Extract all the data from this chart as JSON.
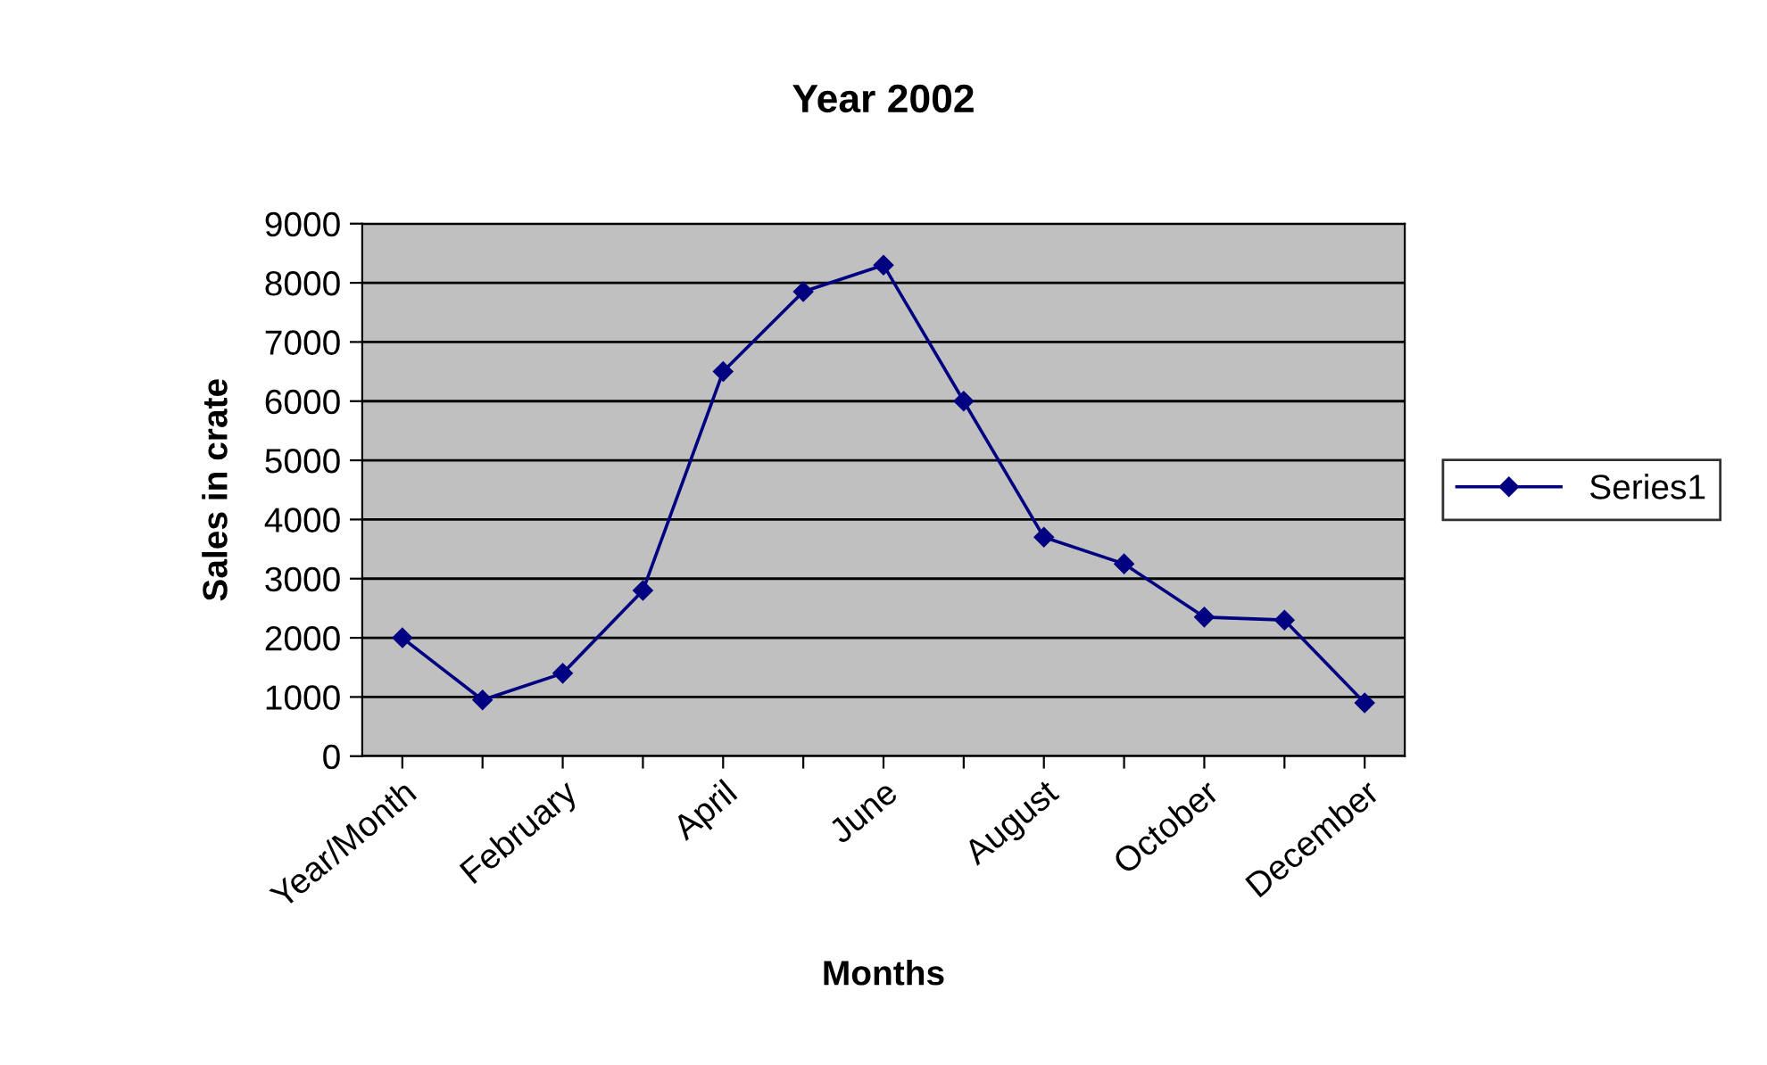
{
  "chart_data": {
    "type": "line",
    "title": "Year 2002",
    "xlabel": "Months",
    "ylabel": "Sales in crate",
    "categories": [
      "Year/Month",
      null,
      "February",
      null,
      "April",
      null,
      "June",
      null,
      "August",
      null,
      "October",
      null,
      "December"
    ],
    "series": [
      {
        "name": "Series1",
        "color": "#000080",
        "values": [
          2000,
          950,
          1400,
          2800,
          6500,
          7850,
          8300,
          6000,
          3700,
          3250,
          2350,
          2300,
          900
        ]
      }
    ],
    "ylim": [
      0,
      9000
    ],
    "yticks": [
      0,
      1000,
      2000,
      3000,
      4000,
      5000,
      6000,
      7000,
      8000,
      9000
    ],
    "grid": "y",
    "legend": "right",
    "marker": "diamond",
    "line_style": "solid"
  }
}
